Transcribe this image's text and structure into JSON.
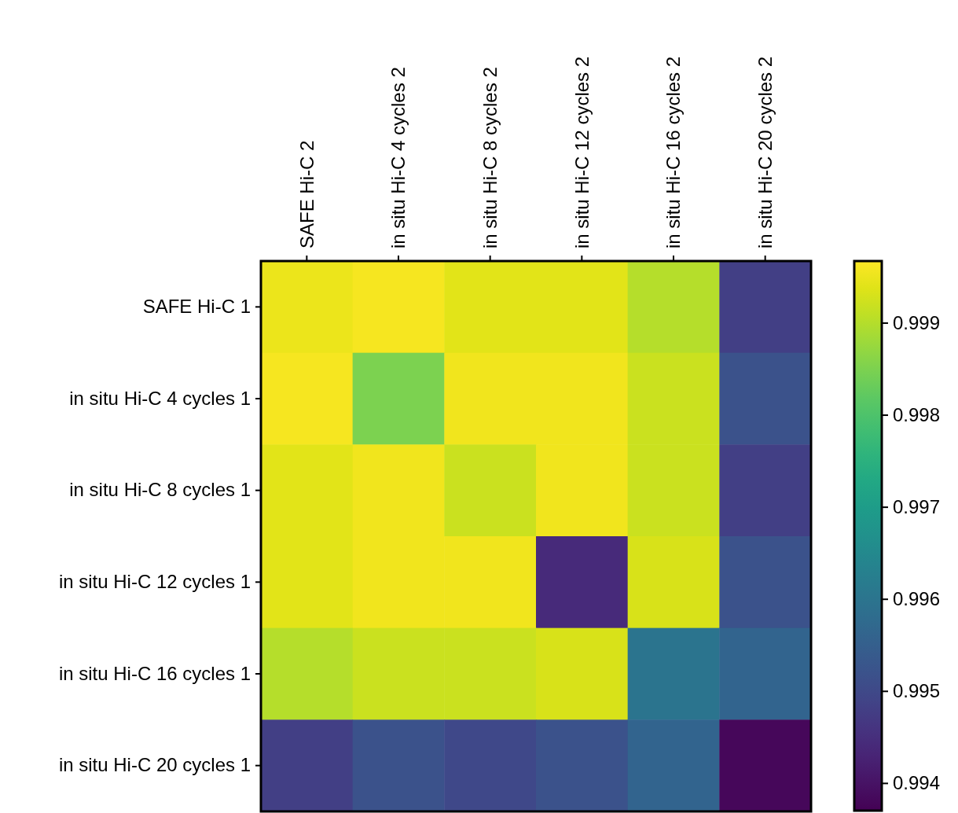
{
  "chart_data": {
    "type": "heatmap",
    "categories": [
      "SAFE Hi-C 2",
      "in situ Hi-C 4 cycles 2",
      "in situ Hi-C 8 cycles 2",
      "in situ Hi-C 12 cycles 2",
      "in situ Hi-C 16 cycles 2",
      "in situ Hi-C 20 cycles 2"
    ],
    "y_categories": [
      "SAFE Hi-C 1",
      "in situ Hi-C 4 cycles 1",
      "in situ Hi-C 8 cycles 1",
      "in situ Hi-C 12 cycles 1",
      "in situ Hi-C 16 cycles 1",
      "in situ Hi-C 20 cycles 1"
    ],
    "cells": [
      [
        0.9995,
        0.9996,
        0.9994,
        0.9994,
        0.999,
        0.9948
      ],
      [
        0.9996,
        0.9985,
        0.99955,
        0.99955,
        0.9992,
        0.9952
      ],
      [
        0.9994,
        0.99955,
        0.9992,
        0.99955,
        0.9992,
        0.9948
      ],
      [
        0.9994,
        0.99955,
        0.99955,
        0.9944,
        0.9993,
        0.9952
      ],
      [
        0.999,
        0.9992,
        0.9992,
        0.9993,
        0.996,
        0.9956
      ],
      [
        0.9948,
        0.9952,
        0.995,
        0.9952,
        0.9956,
        0.9938
      ]
    ],
    "clim": [
      0.9937,
      0.99967
    ],
    "cticks": [
      0.994,
      0.995,
      0.996,
      0.997,
      0.998,
      0.999
    ]
  }
}
